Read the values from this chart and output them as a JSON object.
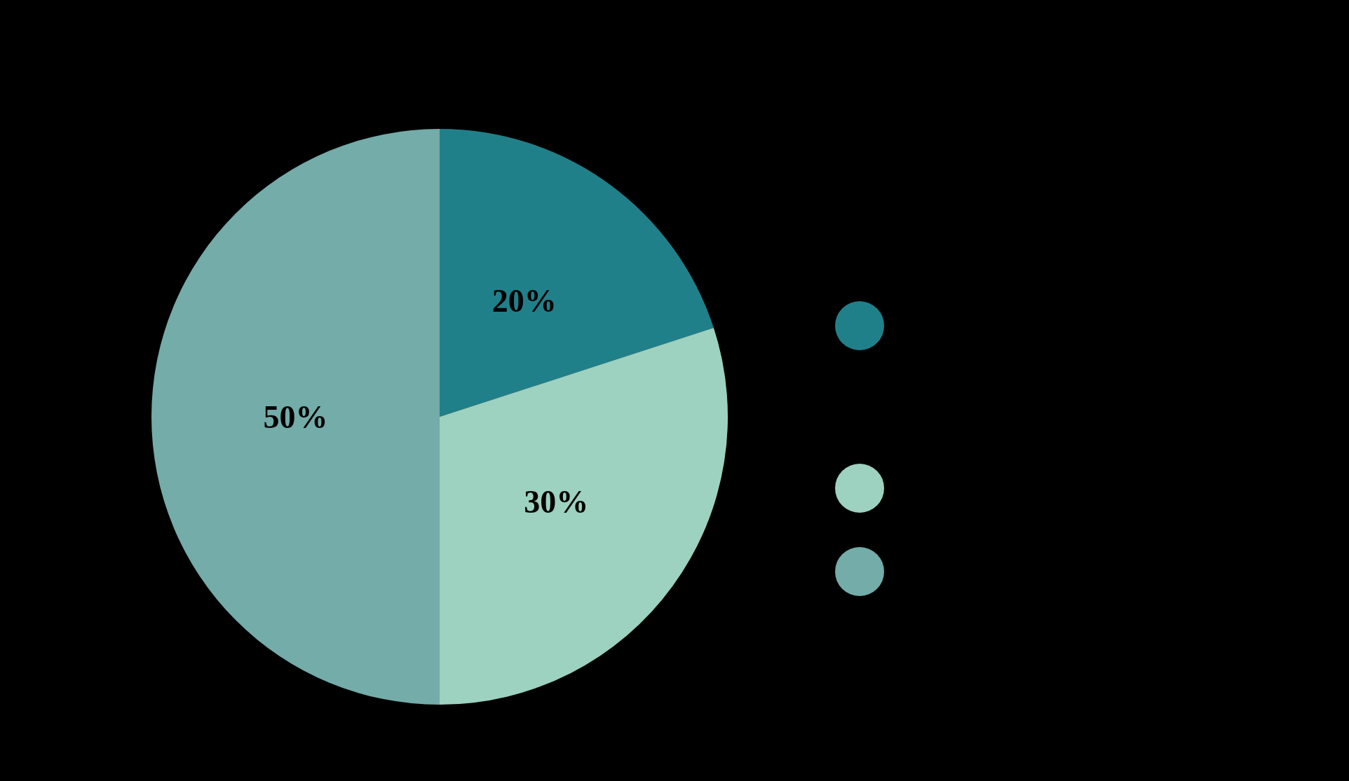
{
  "chart_data": {
    "type": "pie",
    "categories": [
      null,
      null,
      null
    ],
    "values": [
      20,
      30,
      50
    ],
    "colors": [
      "#20808a",
      "#9dd1c0",
      "#73aca8"
    ],
    "value_labels": [
      "20%",
      "30%",
      "50%"
    ]
  }
}
